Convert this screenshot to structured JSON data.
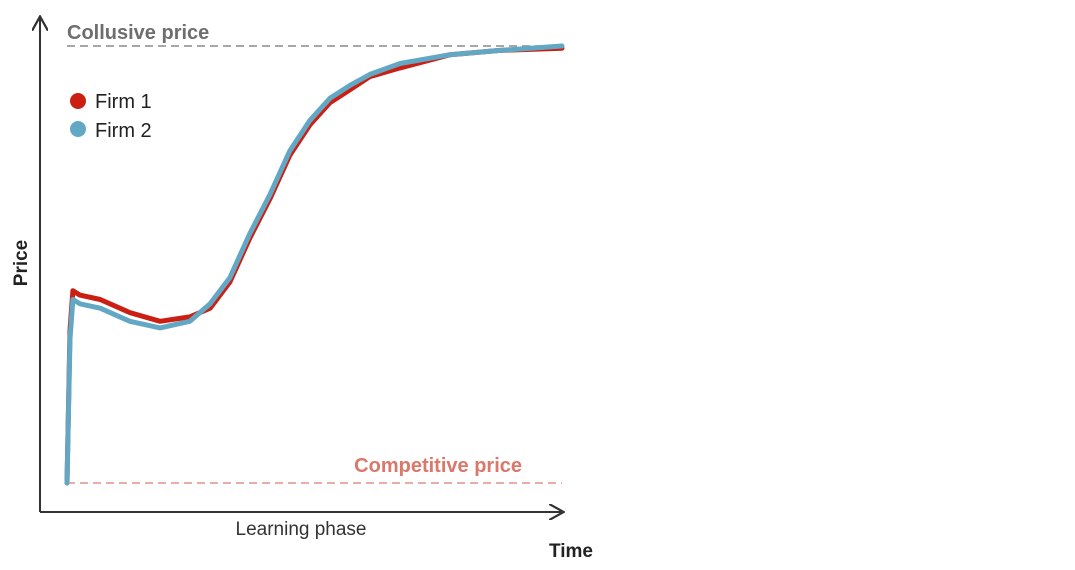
{
  "chart_data": {
    "type": "line",
    "title": "",
    "xlabel": "Time",
    "ylabel": "Price",
    "x_annotation": "Learning phase",
    "xlim": [
      0,
      100
    ],
    "ylim": [
      0,
      1
    ],
    "grid": false,
    "legend_placement": "top-left",
    "reference_lines": [
      {
        "label": "Collusive price",
        "value": 1.0,
        "color": "#8a8a8a"
      },
      {
        "label": "Competitive price",
        "value": 0.0,
        "color": "#d9786b"
      }
    ],
    "series": [
      {
        "name": "Firm 1",
        "color": "#cc1f14",
        "x": [
          0,
          0.6,
          1.2,
          2.6,
          6.7,
          12.7,
          18.8,
          24.8,
          28.9,
          32.9,
          36.9,
          41,
          45,
          49.1,
          53.1,
          57.2,
          61.2,
          67.3,
          77.4,
          87.5,
          100
        ],
        "values": [
          0,
          0.35,
          0.44,
          0.43,
          0.42,
          0.39,
          0.37,
          0.38,
          0.4,
          0.46,
          0.56,
          0.65,
          0.75,
          0.82,
          0.87,
          0.9,
          0.93,
          0.95,
          0.98,
          0.99,
          0.995
        ]
      },
      {
        "name": "Firm 2",
        "color": "#62a8c4",
        "x": [
          0,
          0.6,
          1.2,
          2.6,
          6.7,
          12.7,
          18.8,
          24.8,
          28.9,
          32.9,
          36.9,
          41,
          45,
          49.1,
          53.1,
          57.2,
          61.2,
          67.3,
          77.4,
          87.5,
          100
        ],
        "values": [
          0,
          0.33,
          0.42,
          0.41,
          0.4,
          0.37,
          0.355,
          0.37,
          0.41,
          0.47,
          0.57,
          0.66,
          0.76,
          0.83,
          0.88,
          0.91,
          0.935,
          0.96,
          0.98,
          0.99,
          1.0
        ]
      }
    ]
  }
}
